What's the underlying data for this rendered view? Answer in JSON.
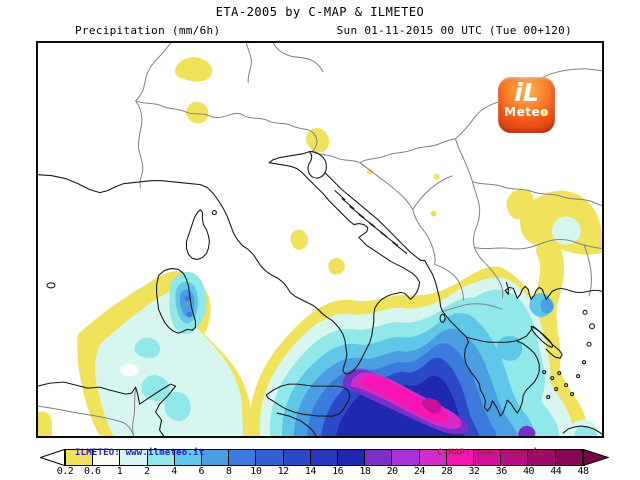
{
  "header": {
    "title": "ETA-2005 by C-MAP & ILMETEO",
    "subtitle_left": "Precipitation (mm/6h)",
    "subtitle_right": "Sun 01-11-2015 00 UTC (Tue 00+120)"
  },
  "logo": {
    "line1": "iL",
    "line2": "Meteo",
    "sun_icon": "sun-glyph"
  },
  "map": {
    "region": "Italy / central Mediterranean precipitation field",
    "palette": {
      "rain_light": "#F0E25A",
      "rain_trace": "#FDFDF2",
      "rain_pale_cyan": "#D8F6F0",
      "rain_cyan": "#90E8E8",
      "rain_med_cyan": "#5FC8E8",
      "rain_sky": "#4C9EE2",
      "rain_royal": "#3C7ADC",
      "rain_blue": "#3460D4",
      "rain_dark_blue": "#2C4AC8",
      "rain_navy": "#2028B2",
      "rain_purple": "#7B2FC8",
      "rain_violet": "#A832D8",
      "rain_magenta": "#D42CC8",
      "rain_pink": "#F714B4",
      "rain_deep_pink": "#C8109A",
      "coastline": "#1a1a1a",
      "border": "#808080"
    }
  },
  "scalebar": {
    "unit": "mm/6h",
    "labels": [
      "0.2",
      "0.6",
      "1",
      "2",
      "4",
      "6",
      "8",
      "10",
      "12",
      "14",
      "16",
      "18",
      "20",
      "24",
      "28",
      "32",
      "36",
      "40",
      "44",
      "48"
    ],
    "segment_colors": [
      "#F0E25A",
      "#FDFDF2",
      "#D8F6F0",
      "#90E8E8",
      "#5FC8E8",
      "#4C9EE2",
      "#3C7ADC",
      "#3460D4",
      "#2C4AC8",
      "#2638BE",
      "#2028B2",
      "#7B2FC8",
      "#A832D8",
      "#D42CC8",
      "#F714B4",
      "#D0109A",
      "#B80D84",
      "#9E0A6A",
      "#880754"
    ],
    "left_arrow_color": "#FFFFFF",
    "right_arrow_color": "#7A0644",
    "overlay_left": "ILMETEO: www.ilmeteo.it",
    "overlay_left_color": "#2020C0",
    "overlay_right": "C-MAP: www.c-map.it",
    "overlay_right_color": "#A02048"
  }
}
